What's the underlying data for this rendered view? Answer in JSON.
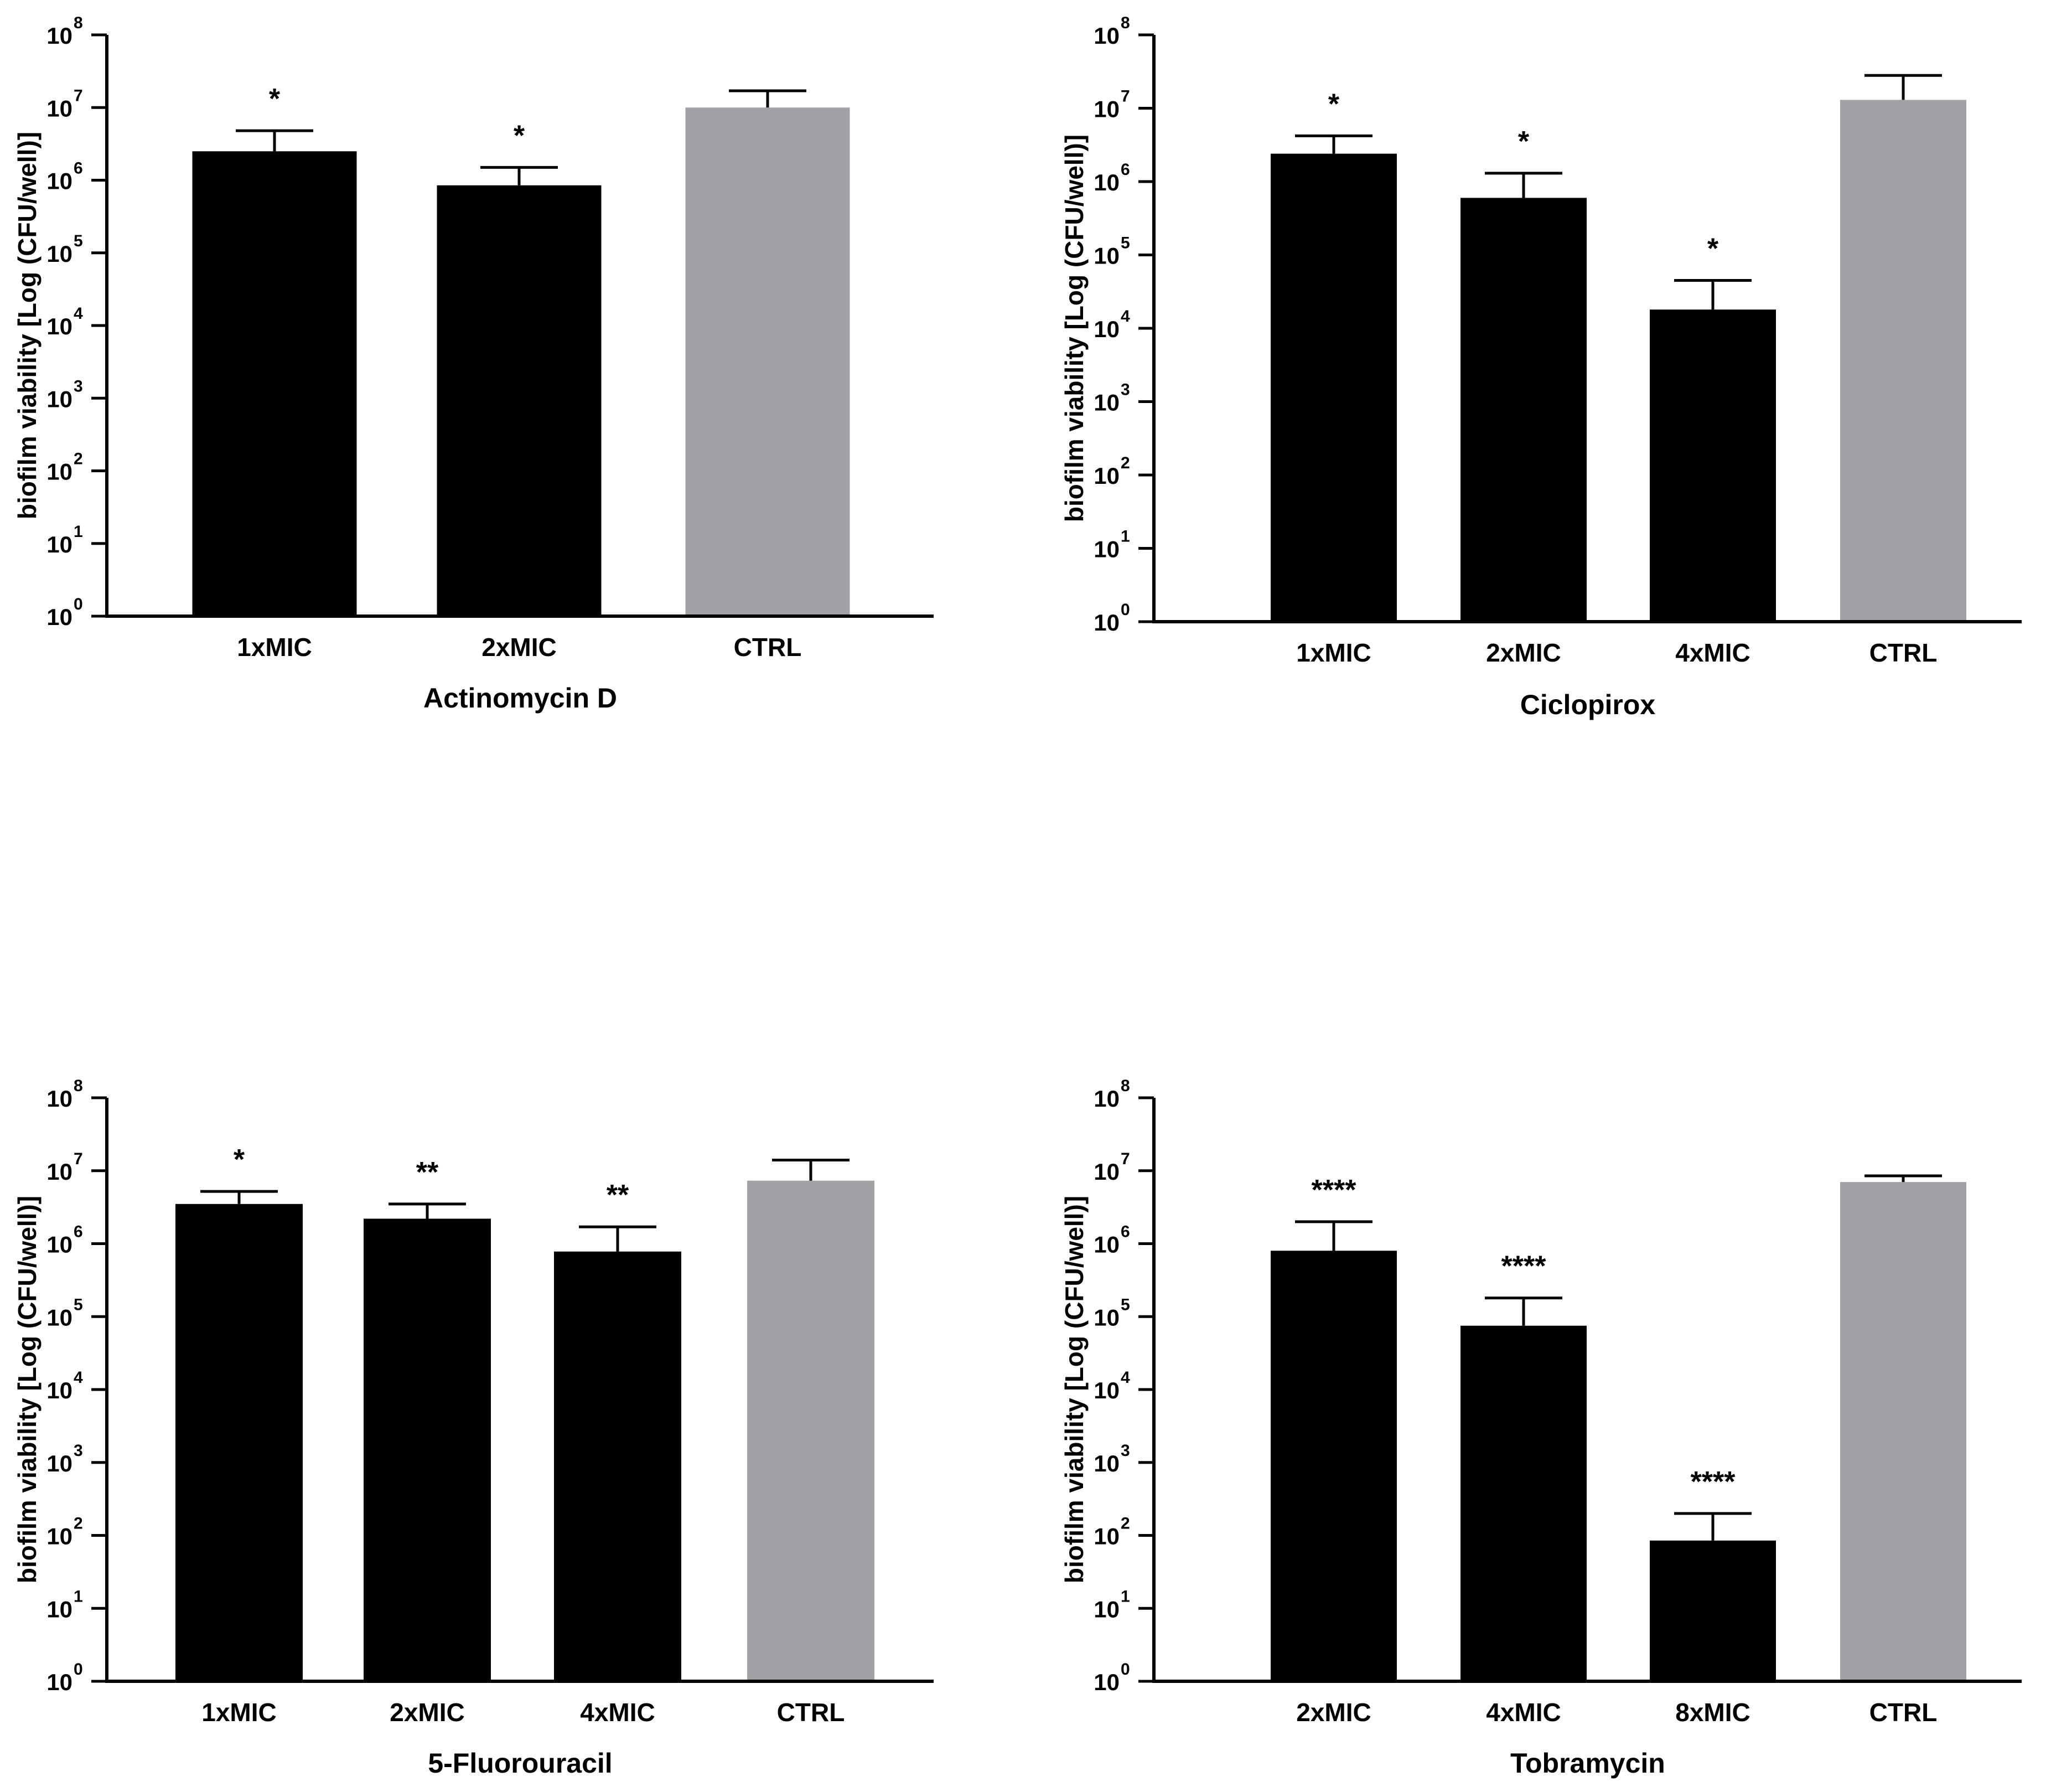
{
  "chart_data": [
    {
      "type": "bar",
      "title": "",
      "xlabel": "Actinomycin D",
      "ylabel": "biofilm viability [Log (CFU/well)]",
      "yscale": "log",
      "ylim": [
        1,
        100000000
      ],
      "categories": [
        "1xMIC",
        "2xMIC",
        "CTRL"
      ],
      "values": [
        2500000,
        850000,
        10000000
      ],
      "error_upper": [
        4800000,
        1500000,
        17000000
      ],
      "significance": [
        "*",
        "*",
        ""
      ],
      "bar_colors": [
        "#000000",
        "#000000",
        "#a2a2a6"
      ]
    },
    {
      "type": "bar",
      "title": "",
      "xlabel": "Ciclopirox",
      "ylabel": "biofilm viability [Log (CFU/well)]",
      "yscale": "log",
      "ylim": [
        1,
        100000000
      ],
      "categories": [
        "1xMIC",
        "2xMIC",
        "4xMIC",
        "CTRL"
      ],
      "values": [
        2400000,
        600000,
        18000,
        13000000
      ],
      "error_upper": [
        4200000,
        1300000,
        45000,
        28000000
      ],
      "significance": [
        "*",
        "*",
        "*",
        ""
      ],
      "bar_colors": [
        "#000000",
        "#000000",
        "#000000",
        "#a2a2a6"
      ]
    },
    {
      "type": "bar",
      "title": "",
      "xlabel": "5-Fluorouracil",
      "ylabel": "biofilm viability [Log (CFU/well)]",
      "yscale": "log",
      "ylim": [
        1,
        100000000
      ],
      "categories": [
        "1xMIC",
        "2xMIC",
        "4xMIC",
        "CTRL"
      ],
      "values": [
        3500000,
        2200000,
        780000,
        7300000
      ],
      "error_upper": [
        5200000,
        3500000,
        1700000,
        14000000
      ],
      "significance": [
        "*",
        "**",
        "**",
        ""
      ],
      "bar_colors": [
        "#000000",
        "#000000",
        "#000000",
        "#a2a2a6"
      ]
    },
    {
      "type": "bar",
      "title": "",
      "xlabel": "Tobramycin",
      "ylabel": "biofilm viability [Log (CFU/well)]",
      "yscale": "log",
      "ylim": [
        1,
        100000000
      ],
      "categories": [
        "2xMIC",
        "4xMIC",
        "8xMIC",
        "CTRL"
      ],
      "values": [
        800000,
        75000,
        85,
        7000000
      ],
      "error_upper": [
        2000000,
        180000,
        200,
        8500000
      ],
      "significance": [
        "****",
        "****",
        "****",
        ""
      ],
      "bar_colors": [
        "#000000",
        "#000000",
        "#000000",
        "#a2a2a6"
      ]
    }
  ]
}
